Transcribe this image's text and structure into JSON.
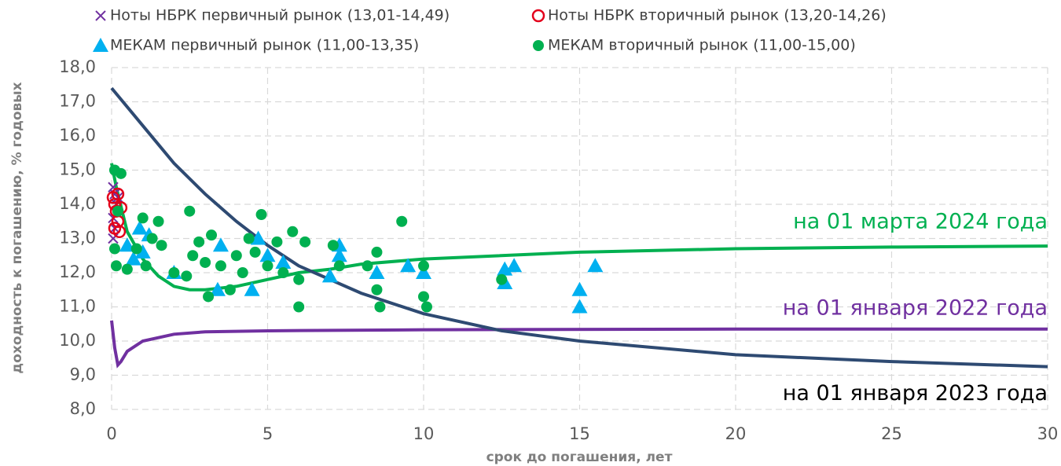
{
  "chart_data": {
    "type": "scatter",
    "x_label": "срок до погашения, лет",
    "y_label": "доходность к погашению, % годовых",
    "xlim": [
      0,
      30
    ],
    "xticks": [
      0,
      5,
      10,
      15,
      20,
      25,
      30
    ],
    "ylim": [
      8,
      18
    ],
    "yticks": [
      {
        "value": 8,
        "label": "8,0"
      },
      {
        "value": 9,
        "label": "9,0"
      },
      {
        "value": 10,
        "label": "10,0"
      },
      {
        "value": 11,
        "label": "11,0"
      },
      {
        "value": 12,
        "label": "12,0"
      },
      {
        "value": 13,
        "label": "13,0"
      },
      {
        "value": 14,
        "label": "14,0"
      },
      {
        "value": 15,
        "label": "15,0"
      },
      {
        "value": 16,
        "label": "16,0"
      },
      {
        "value": 17,
        "label": "17,0"
      },
      {
        "value": 18,
        "label": "18,0"
      }
    ],
    "grid": true,
    "series": [
      {
        "name": "Ноты НБРК первичный рынок (13,01-14,49)",
        "type": "scatter",
        "marker": "x",
        "color": "#7030a0",
        "x": [
          0.05,
          0.1,
          0.15,
          0.05,
          0.1,
          0.05,
          0.2
        ],
        "values": [
          14.5,
          14.3,
          14.0,
          13.6,
          13.3,
          13.0,
          14.2
        ]
      },
      {
        "name": "Ноты НБРК вторичный рынок (13,20-14,26)",
        "type": "scatter",
        "marker": "open-circle",
        "color": "#e3001b",
        "x": [
          0.05,
          0.1,
          0.15,
          0.2,
          0.1,
          0.25,
          0.2,
          0.3
        ],
        "values": [
          14.2,
          14.0,
          13.8,
          13.5,
          13.3,
          13.2,
          14.3,
          13.9
        ]
      },
      {
        "name": "МЕКАМ первичный рынок (11,00-13,35)",
        "type": "scatter",
        "marker": "triangle",
        "color": "#00b0f0",
        "x": [
          0.5,
          0.7,
          0.9,
          1.0,
          1.2,
          2.0,
          3.4,
          3.5,
          4.5,
          4.7,
          5.0,
          5.5,
          7.0,
          7.3,
          7.3,
          8.5,
          9.5,
          10.0,
          12.6,
          12.6,
          12.9,
          15.0,
          15.0,
          15.5
        ],
        "values": [
          12.8,
          12.4,
          13.3,
          12.6,
          13.1,
          12.0,
          11.5,
          12.8,
          11.5,
          13.0,
          12.5,
          12.3,
          11.9,
          12.8,
          12.5,
          12.0,
          12.2,
          12.0,
          12.1,
          11.7,
          12.2,
          11.5,
          11.0,
          12.2
        ]
      },
      {
        "name": "МЕКАМ вторичный рынок (11,00-15,00)",
        "type": "scatter",
        "marker": "circle",
        "color": "#00b050",
        "x": [
          0.1,
          0.3,
          0.15,
          0.1,
          0.2,
          0.5,
          0.8,
          1.0,
          1.1,
          1.3,
          1.5,
          1.6,
          2.0,
          2.4,
          2.5,
          2.6,
          2.8,
          3.0,
          3.1,
          3.2,
          3.5,
          3.8,
          4.0,
          4.2,
          4.4,
          4.6,
          4.8,
          5.0,
          5.3,
          5.5,
          5.8,
          6.0,
          6.0,
          6.2,
          7.1,
          7.3,
          8.2,
          8.5,
          8.5,
          8.6,
          9.3,
          10.0,
          10.0,
          10.1,
          12.5
        ],
        "values": [
          15.0,
          14.9,
          12.2,
          12.7,
          13.8,
          12.1,
          12.7,
          13.6,
          12.2,
          13.0,
          13.5,
          12.8,
          12.0,
          11.9,
          13.8,
          12.5,
          12.9,
          12.3,
          11.3,
          13.1,
          12.2,
          11.5,
          12.5,
          12.0,
          13.0,
          12.6,
          13.7,
          12.2,
          12.9,
          12.0,
          13.2,
          11.0,
          11.8,
          12.9,
          12.8,
          12.2,
          12.2,
          12.6,
          11.5,
          11.0,
          13.5,
          12.2,
          11.3,
          11.0,
          11.8
        ]
      },
      {
        "name": "на 01 марта 2024 года",
        "type": "line",
        "color": "#00b050",
        "x": [
          0,
          0.15,
          0.5,
          1,
          1.5,
          2,
          2.5,
          3,
          4,
          5,
          6,
          7,
          8,
          10,
          15,
          20,
          25,
          30
        ],
        "values": [
          15.2,
          14.5,
          13.2,
          12.4,
          11.9,
          11.6,
          11.5,
          11.5,
          11.6,
          11.8,
          12.0,
          12.1,
          12.25,
          12.4,
          12.6,
          12.7,
          12.75,
          12.78
        ]
      },
      {
        "name": "на 01 января 2022 года",
        "type": "line",
        "color": "#7030a0",
        "x": [
          0,
          0.1,
          0.2,
          0.3,
          0.5,
          1,
          2,
          3,
          5,
          10,
          20,
          30
        ],
        "values": [
          10.6,
          9.8,
          9.3,
          9.4,
          9.7,
          10.0,
          10.2,
          10.27,
          10.3,
          10.33,
          10.35,
          10.35
        ]
      },
      {
        "name": "на 01 января 2023 года",
        "type": "line",
        "color": "#2e4a72",
        "x": [
          0,
          1,
          2,
          3,
          4,
          5,
          6,
          8,
          10,
          12.5,
          15,
          20,
          25,
          30
        ],
        "values": [
          17.4,
          16.3,
          15.2,
          14.3,
          13.5,
          12.8,
          12.2,
          11.4,
          10.8,
          10.3,
          10.0,
          9.6,
          9.4,
          9.25
        ]
      }
    ]
  }
}
